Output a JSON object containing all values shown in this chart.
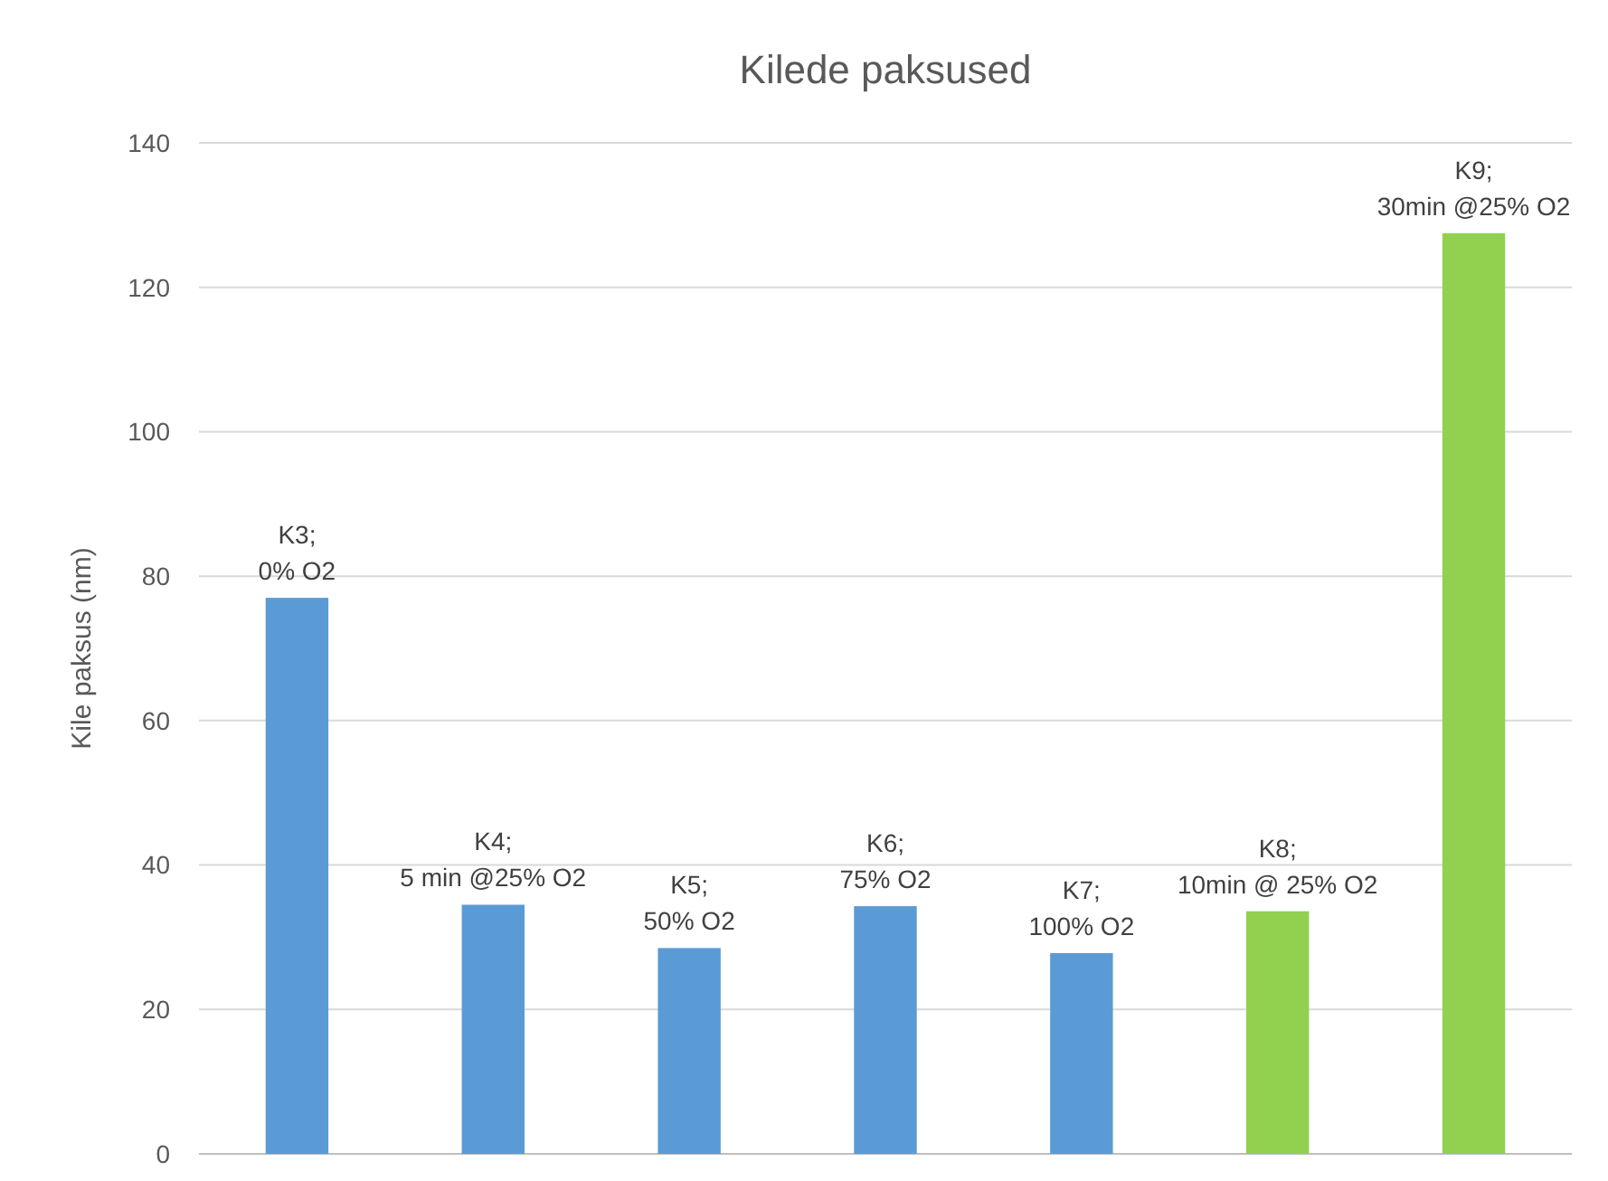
{
  "chart_data": {
    "type": "bar",
    "title": "Kilede paksused",
    "ylabel": "Kile paksus (nm)",
    "categories": [
      "K3;\n0% O2",
      "K4;\n5 min @25% O2",
      "K5;\n50% O2",
      "K6;\n75% O2",
      "K7;\n100% O2",
      "K8;\n10min @ 25% O2",
      "K9;\n30min @25% O2"
    ],
    "values": [
      77,
      34.5,
      28.5,
      34.3,
      27.8,
      33.6,
      127.5
    ],
    "colors": [
      "#5b9bd5",
      "#5b9bd5",
      "#5b9bd5",
      "#5b9bd5",
      "#5b9bd5",
      "#92d050",
      "#92d050"
    ],
    "ylim": [
      0,
      140
    ],
    "yticks": [
      0,
      20,
      40,
      60,
      80,
      100,
      120,
      140
    ],
    "grid": "y"
  }
}
